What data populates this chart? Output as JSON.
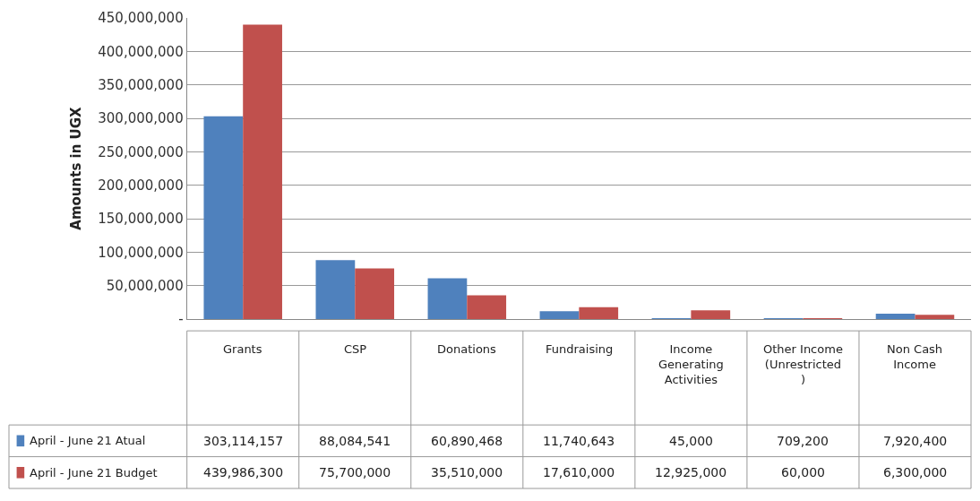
{
  "chart_data": {
    "type": "bar",
    "ylabel": "Amounts in UGX",
    "categories": [
      "Grants",
      "CSP",
      "Donations",
      "Fundraising",
      "Income Generating Activities",
      "Other Income (Unrestricted )",
      "Non Cash Income"
    ],
    "series": [
      {
        "name": "April - June 21 Atual",
        "color": "#4f81bd",
        "values": [
          303114157,
          88084541,
          60890468,
          11740643,
          45000,
          709200,
          7920400
        ],
        "value_labels": [
          "303,114,157",
          "88,084,541",
          "60,890,468",
          "11,740,643",
          "45,000",
          "709,200",
          "7,920,400"
        ]
      },
      {
        "name": "April - June 21 Budget",
        "color": "#c0504d",
        "values": [
          439986300,
          75700000,
          35510000,
          17610000,
          12925000,
          60000,
          6300000
        ],
        "value_labels": [
          "439,986,300",
          "75,700,000",
          "35,510,000",
          "17,610,000",
          "12,925,000",
          "60,000",
          "6,300,000"
        ]
      }
    ],
    "ylim": [
      0,
      450000000
    ],
    "yticks": [
      {
        "value": 0,
        "label": "-"
      },
      {
        "value": 50000000,
        "label": "50,000,000"
      },
      {
        "value": 100000000,
        "label": "100,000,000"
      },
      {
        "value": 150000000,
        "label": "150,000,000"
      },
      {
        "value": 200000000,
        "label": "200,000,000"
      },
      {
        "value": 250000000,
        "label": "250,000,000"
      },
      {
        "value": 300000000,
        "label": "300,000,000"
      },
      {
        "value": 350000000,
        "label": "350,000,000"
      },
      {
        "value": 400000000,
        "label": "400,000,000"
      },
      {
        "value": 450000000,
        "label": "450,000,000"
      }
    ],
    "grid": "y",
    "legend": "bottom left"
  }
}
